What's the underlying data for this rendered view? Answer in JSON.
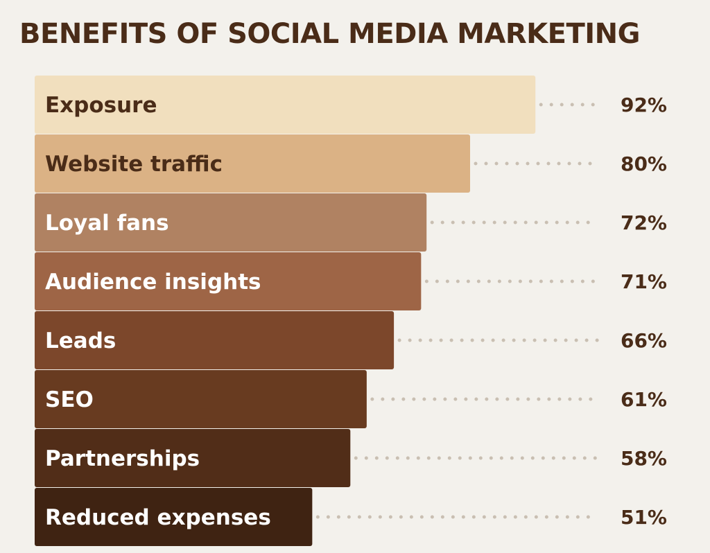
{
  "chart_data": {
    "type": "bar",
    "orientation": "horizontal",
    "title": "BENEFITS OF SOCIAL MEDIA MARKETING",
    "xlabel": "",
    "ylabel": "",
    "grid": false,
    "legend": "none",
    "xlim": [
      0,
      100
    ],
    "categories": [
      "Exposure",
      "Website traffic",
      "Loyal fans",
      "Audience insights",
      "Leads",
      "SEO",
      "Partnerships",
      "Reduced expenses"
    ],
    "values": [
      92,
      80,
      72,
      71,
      66,
      61,
      58,
      51
    ],
    "value_labels": [
      "92%",
      "80%",
      "72%",
      "71%",
      "66%",
      "61%",
      "58%",
      "51%"
    ],
    "colors": [
      "#f1dfbe",
      "#dbb285",
      "#b08262",
      "#9e6546",
      "#7c472b",
      "#683b20",
      "#512d18",
      "#3f2312"
    ],
    "label_colors": [
      "#4a2c18",
      "#4a2c18",
      "#ffffff",
      "#ffffff",
      "#ffffff",
      "#ffffff",
      "#ffffff",
      "#ffffff"
    ],
    "dot_color": "#c9bfb2",
    "value_color": "#4a2c18"
  }
}
